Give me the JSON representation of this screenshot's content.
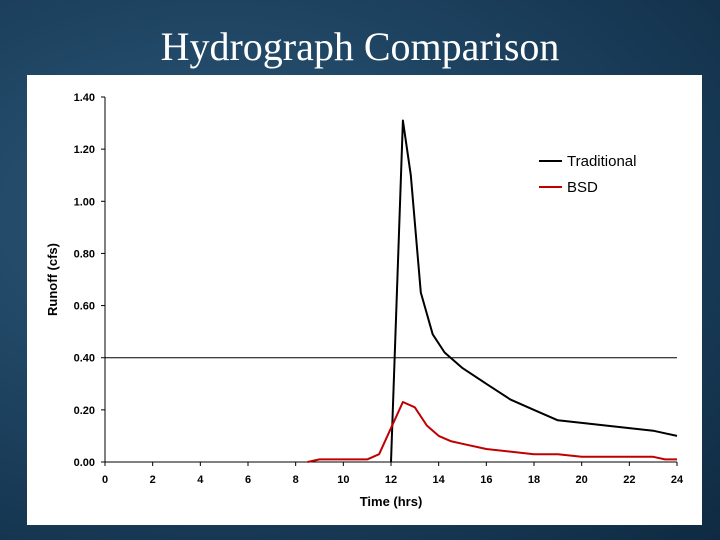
{
  "title": "Hydrograph Comparison",
  "chart_data": {
    "type": "line",
    "title": "Hydrograph Comparison",
    "xlabel": "Time (hrs)",
    "ylabel": "Runoff (cfs)",
    "xlim": [
      0,
      24
    ],
    "ylim": [
      0,
      1.4
    ],
    "xticks": [
      "0",
      "2",
      "4",
      "6",
      "8",
      "10",
      "12",
      "14",
      "16",
      "18",
      "20",
      "22",
      "24"
    ],
    "yticks": [
      "0.00",
      "0.20",
      "0.40",
      "0.60",
      "0.80",
      "1.00",
      "1.20",
      "1.40"
    ],
    "reference_line_y": 0.4,
    "grid": false,
    "legend_position": "top-right",
    "series": [
      {
        "name": "Traditional",
        "color": "#000000",
        "x": [
          12.0,
          12.17,
          12.5,
          12.83,
          13.25,
          13.75,
          14.25,
          15,
          16,
          17,
          18,
          19,
          20,
          21,
          22,
          23,
          23.5,
          24
        ],
        "y": [
          0.0,
          0.45,
          1.31,
          1.1,
          0.65,
          0.49,
          0.42,
          0.36,
          0.3,
          0.24,
          0.2,
          0.16,
          0.15,
          0.14,
          0.13,
          0.12,
          0.11,
          0.1
        ]
      },
      {
        "name": "BSD",
        "color": "#c00000",
        "x": [
          8.5,
          9,
          10,
          11,
          11.5,
          12,
          12.5,
          13,
          13.5,
          14,
          14.5,
          15,
          16,
          17,
          18,
          19,
          20,
          21,
          22,
          23,
          23.5,
          24
        ],
        "y": [
          0.0,
          0.01,
          0.01,
          0.01,
          0.03,
          0.13,
          0.23,
          0.21,
          0.14,
          0.1,
          0.08,
          0.07,
          0.05,
          0.04,
          0.03,
          0.03,
          0.02,
          0.02,
          0.02,
          0.02,
          0.01,
          0.01
        ]
      }
    ]
  }
}
